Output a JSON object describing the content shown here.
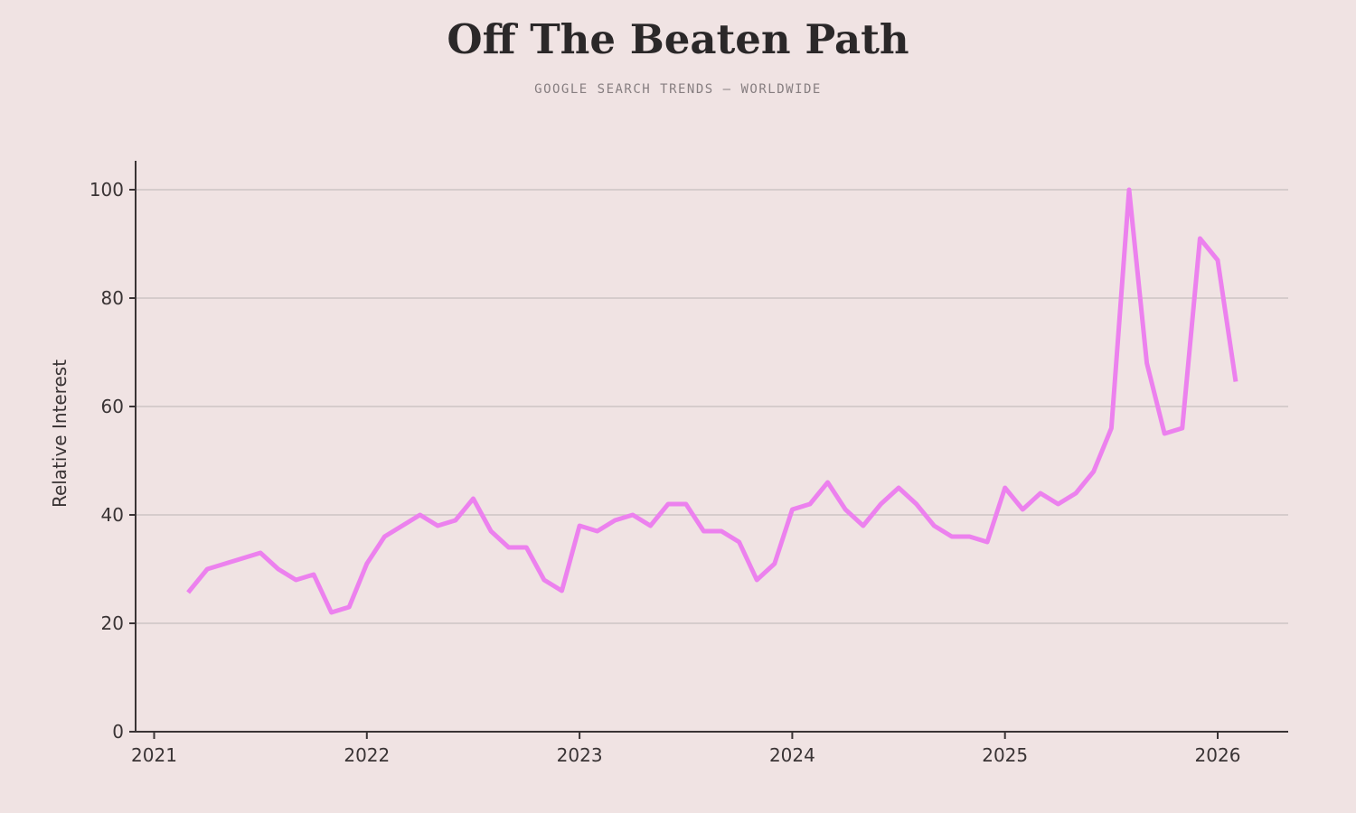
{
  "header": {
    "title": "Off The Beaten Path",
    "subtitle": "GOOGLE SEARCH TRENDS — WORLDWIDE"
  },
  "colors": {
    "background": "#f0e3e3",
    "line": "#ec81ee",
    "grid": "#cdc4c5",
    "axis": "#3a3435",
    "title": "#2b2829",
    "subtitle": "#867e80"
  },
  "chart_data": {
    "type": "line",
    "title": "Off The Beaten Path",
    "subtitle": "GOOGLE SEARCH TRENDS — WORLDWIDE",
    "xlabel": "",
    "ylabel": "Relative Interest",
    "ylim": [
      0,
      105
    ],
    "yticks": [
      0,
      20,
      40,
      60,
      80,
      100
    ],
    "xtick_years": [
      2021,
      2022,
      2023,
      2024,
      2025,
      2026
    ],
    "grid": "horizontal-only",
    "legend": "none",
    "line_color": "#ec81ee",
    "x": [
      "2021-03",
      "2021-04",
      "2021-05",
      "2021-06",
      "2021-07",
      "2021-08",
      "2021-09",
      "2021-10",
      "2021-11",
      "2021-12",
      "2022-01",
      "2022-02",
      "2022-03",
      "2022-04",
      "2022-05",
      "2022-06",
      "2022-07",
      "2022-08",
      "2022-09",
      "2022-10",
      "2022-11",
      "2022-12",
      "2023-01",
      "2023-02",
      "2023-03",
      "2023-04",
      "2023-05",
      "2023-06",
      "2023-07",
      "2023-08",
      "2023-09",
      "2023-10",
      "2023-11",
      "2023-12",
      "2024-01",
      "2024-02",
      "2024-03",
      "2024-04",
      "2024-05",
      "2024-06",
      "2024-07",
      "2024-08",
      "2024-09",
      "2024-10",
      "2024-11",
      "2024-12",
      "2025-01",
      "2025-02",
      "2025-03",
      "2025-04",
      "2025-05",
      "2025-06",
      "2025-07",
      "2025-08",
      "2025-09",
      "2025-10",
      "2025-11",
      "2025-12",
      "2026-01",
      "2026-02"
    ],
    "values": [
      26,
      30,
      31,
      32,
      33,
      30,
      28,
      29,
      22,
      23,
      31,
      36,
      38,
      40,
      38,
      39,
      43,
      37,
      34,
      34,
      28,
      26,
      38,
      37,
      39,
      40,
      38,
      42,
      42,
      37,
      37,
      35,
      28,
      31,
      41,
      42,
      46,
      41,
      38,
      42,
      45,
      42,
      38,
      36,
      36,
      35,
      45,
      41,
      44,
      42,
      44,
      48,
      56,
      100,
      68,
      55,
      56,
      91,
      87,
      65
    ]
  }
}
